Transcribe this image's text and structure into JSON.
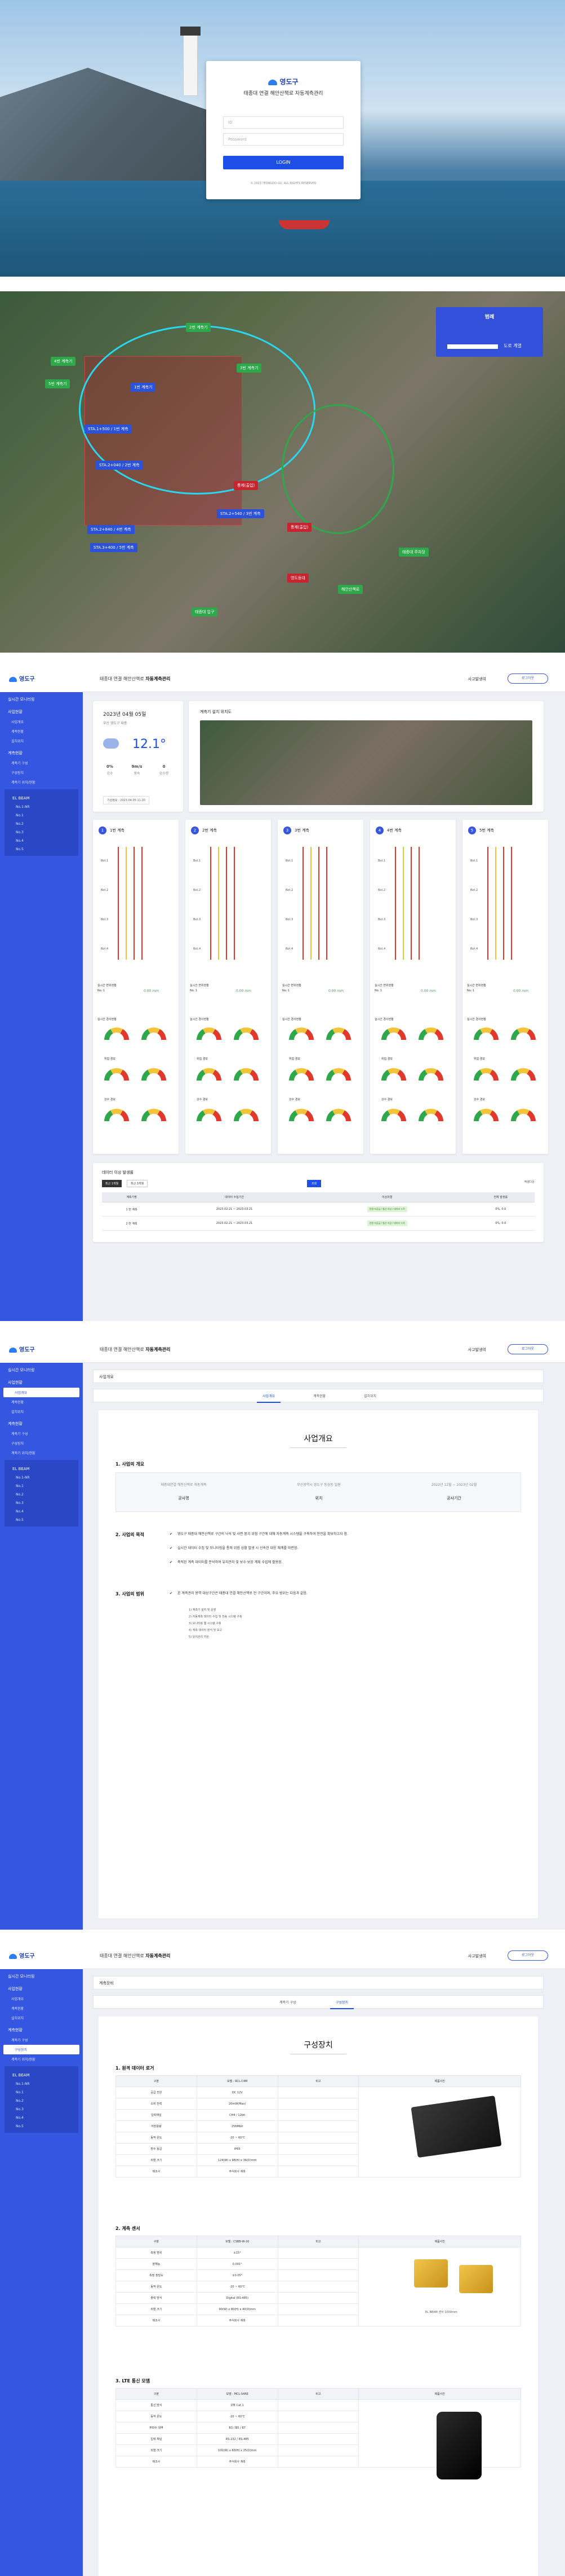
{
  "login": {
    "brand": "영도구",
    "system_title": "태종대 연결 해안산책로 자동계측관리",
    "id_placeholder": "ID",
    "pw_placeholder": "Password",
    "login_button": "LOGIN",
    "copyright": "© 2023 YEONGDO-GU. ALL RIGHTS RESERVED"
  },
  "map": {
    "panel_title": "범례",
    "panel_label": "도로 계열",
    "pins": [
      {
        "text": "STA.1+500 / 1번 계측"
      },
      {
        "text": "STA.2+040 / 2번 계측"
      },
      {
        "text": "STA.2+540 / 3번 계측"
      },
      {
        "text": "STA.2+840 / 4번 계측"
      },
      {
        "text": "STA.3+400 / 5번 계측"
      },
      {
        "text": "1번 계측기"
      },
      {
        "text": "2번 계측기"
      },
      {
        "text": "3번 계측기"
      },
      {
        "text": "4번 계측기"
      },
      {
        "text": "5번 계측기"
      },
      {
        "text": "통제(출입)"
      },
      {
        "text": "통제(출입)"
      },
      {
        "text": "태종대 입구"
      },
      {
        "text": "해안산책로"
      },
      {
        "text": "태종대 주차장"
      },
      {
        "text": "영도등대"
      }
    ]
  },
  "dashboard": {
    "brand": "영도구",
    "top_title": "태종대 연결 해안산책로",
    "top_title_bold": "자동계측관리",
    "user": "사고발생여",
    "logout": "로그아웃",
    "menu": {
      "g1": "실시간 모니터링",
      "g2": "사업현황",
      "g2_items": [
        "사업개요",
        "계측현황",
        "설치위치"
      ],
      "g3": "계측현황",
      "g3_items": [
        "계측기 구성",
        "구성장치",
        "계측기 위치/현황"
      ],
      "g4": "EL BEAM",
      "g4_items": [
        "No.1-NR",
        "No.1",
        "No.2",
        "No.3",
        "No.4",
        "No.5"
      ]
    },
    "weather": {
      "date": "2023년 04월 05일",
      "place": "부산 영도구 태종",
      "temp": "12.1°",
      "stats": [
        {
          "v": "0%",
          "l": "강수"
        },
        {
          "v": "9m/s",
          "l": "풍속"
        },
        {
          "v": "0",
          "l": "강수량"
        }
      ],
      "update": "기상정보 : 2023.04.05 11:20"
    },
    "minimap_title": "계측기 설치 위치도",
    "modules": [
      {
        "n": "1",
        "name": "1번 계측"
      },
      {
        "n": "2",
        "name": "2번 계측"
      },
      {
        "n": "3",
        "name": "3번 계측"
      },
      {
        "n": "4",
        "name": "4번 계측"
      },
      {
        "n": "5",
        "name": "5번 계측"
      }
    ],
    "module_labels": [
      "Bot.1",
      "Bot.2",
      "Bot.3",
      "Bot.4"
    ],
    "module_rows": [
      "실시간 변위현황",
      "No. 1",
      "실시간 경사현황",
      "위험 경보",
      "강수 경보"
    ],
    "module_val": "0.00 mm",
    "table": {
      "title": "데이터 이상 발생률",
      "filters": [
        "최근 1개월",
        "최근 3개월"
      ],
      "search": "조회",
      "export": "엑셀다운",
      "headers": [
        "계측기명",
        "데이터 수집기간",
        "이상유형",
        "전체 발생률"
      ],
      "rows": [
        {
          "a": "1 번 계측",
          "b": "2023.02.21 ~ 2023.03.21",
          "c": "전원 미공급 / 통신 이상 / 데이터 누락",
          "d": "0%, 0.0"
        },
        {
          "a": "2 번 계측",
          "b": "2023.02.21 ~ 2023.03.21",
          "c": "전원 미공급 / 통신 이상 / 데이터 누락",
          "d": "0%, 0.0"
        }
      ]
    }
  },
  "overview": {
    "crumb": "사업개요",
    "tabs": [
      "사업개요",
      "계측현황",
      "설치위치"
    ],
    "title": "사업개요",
    "s1": "1. 사업의 개요",
    "cells": [
      {
        "a": "태종대연결 해안산책로 자동계측",
        "b": "공사명"
      },
      {
        "a": "부산광역시 영도구 동삼동 일원",
        "b": "위치"
      },
      {
        "a": "2022년 12월 ~ 2023년 02월",
        "b": "공사기간"
      }
    ],
    "s2": "2. 사업의 목적",
    "purpose": [
      "영도구 태종대 해안산책로 구간의 낙석 및 사면 붕괴 위험 구간에 대해 자동계측 시스템을 구축하여 안전을 확보하고자 함.",
      "실시간 데이터 수집 및 모니터링을 통해 위험 상황 발생 시 신속한 대응 체계를 마련함.",
      "축적된 계측 데이터를 분석하여 유지관리 및 보수·보강 계획 수립에 활용함."
    ],
    "s3": "3. 사업의 범위",
    "scope_head": "본 계측관리 용역 대상구간은 태종대 연결 해안산책로 전 구간이며, 주요 범위는 다음과 같음.",
    "scope": [
      "1) 계측기 설치 및 운영",
      "2) 자동계측 데이터 수집 및 전송 시스템 구축",
      "3) 모니터링 웹 시스템 구축",
      "4) 계측 데이터 분석 및 보고",
      "5) 유지관리 지원"
    ]
  },
  "components": {
    "crumb": "계측장비",
    "tabs": [
      "계측기 구성",
      "구성장치"
    ],
    "title": "구성장치",
    "s1": "1. 원격 데이터 로거",
    "s2": "2. 계측 센서",
    "s3": "3. LTE 통신 모뎀",
    "headers": [
      "구분",
      "모델 : RCL-C4M",
      "비고",
      "제품사진"
    ],
    "headers2": [
      "구분",
      "모델 : CSBB-W-16",
      "비고",
      "제품사진"
    ],
    "headers3": [
      "구분",
      "모델 : MCL-S4RE",
      "비고",
      "제품사진"
    ],
    "t1": [
      [
        "공급 전원",
        "DC 12V"
      ],
      [
        "소비 전력",
        "20mW(Max)"
      ],
      [
        "입력채널",
        "CH4 / 12bit"
      ],
      [
        "저장용량",
        "256Mbit"
      ],
      [
        "동작 온도",
        "-20 ~ 60℃"
      ],
      [
        "방수 등급",
        "IP65"
      ],
      [
        "외형 크기",
        "124(W) x 98(H) x 36(D)mm"
      ],
      [
        "제조사",
        "주식회사 계측"
      ]
    ],
    "t2": [
      [
        "측정 범위",
        "±15°"
      ],
      [
        "분해능",
        "0.001°"
      ],
      [
        "측정 정밀도",
        "±0.05°"
      ],
      [
        "동작 온도",
        "-20 ~ 60℃"
      ],
      [
        "출력 방식",
        "Digital (RS-485)"
      ],
      [
        "외형 크기",
        "90(W) x 80(H) x 40(D)mm"
      ],
      [
        "제조사",
        "주식회사 계측"
      ]
    ],
    "t2_note": "EL BEAM 센서 1000mm",
    "t3": [
      [
        "통신 방식",
        "LTE Cat.1"
      ],
      [
        "동작 온도",
        "-20 ~ 60℃"
      ],
      [
        "주파수 대역",
        "B3 / B5 / B7"
      ],
      [
        "입력 채널",
        "RS-232 / RS-485"
      ],
      [
        "외형 크기",
        "100(W) x 60(H) x 25(D)mm"
      ],
      [
        "제조사",
        "주식회사 계측"
      ]
    ]
  },
  "colors": {
    "primary": "#3456e0",
    "accent": "#1d4ee6",
    "danger": "#c8242f",
    "ok": "#2ea84a"
  }
}
